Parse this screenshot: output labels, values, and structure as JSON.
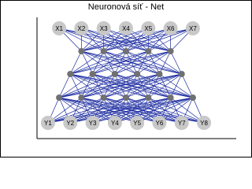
{
  "title": "Neuronová síť - Net",
  "inputs": [
    "X1",
    "X2",
    "X3",
    "X4",
    "X5",
    "X6",
    "X7"
  ],
  "outputs": [
    "Y1",
    "Y2",
    "Y3",
    "Y4",
    "Y5",
    "Y6",
    "Y7",
    "Y8"
  ]
}
